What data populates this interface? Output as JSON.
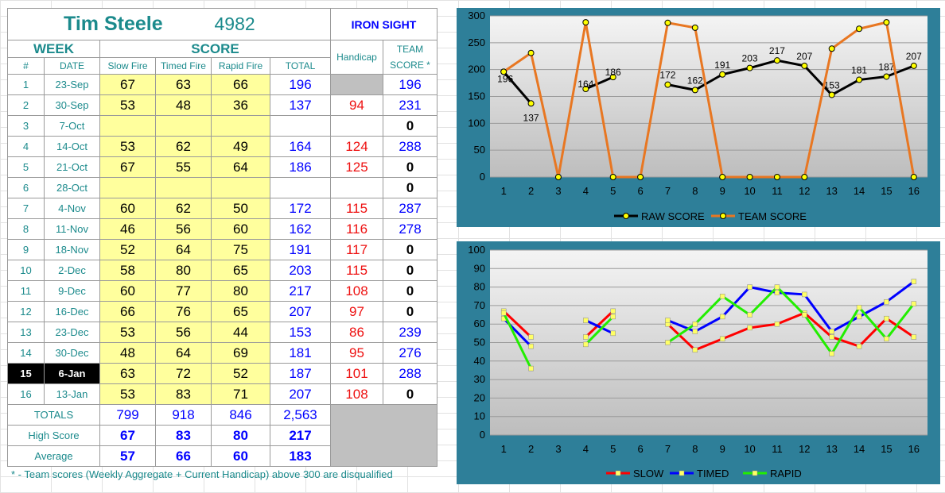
{
  "header": {
    "name": "Tim Steele",
    "id_number": "4982",
    "division": "IRON SIGHT"
  },
  "labels": {
    "week": "WEEK",
    "score": "SCORE",
    "handicap": "Handicap",
    "team_line1": "TEAM",
    "team_line2": "SCORE *",
    "num": "#",
    "date": "DATE",
    "slow": "Slow Fire",
    "timed": "Timed Fire",
    "rapid": "Rapid Fire",
    "total": "TOTAL",
    "totals": "TOTALS",
    "high": "High Score",
    "average": "Average"
  },
  "rows": [
    {
      "n": "1",
      "date": "23-Sep",
      "slow": "67",
      "timed": "63",
      "rapid": "66",
      "total": "196",
      "hc": "",
      "team": "196"
    },
    {
      "n": "2",
      "date": "30-Sep",
      "slow": "53",
      "timed": "48",
      "rapid": "36",
      "total": "137",
      "hc": "94",
      "team": "231"
    },
    {
      "n": "3",
      "date": "7-Oct",
      "slow": "",
      "timed": "",
      "rapid": "",
      "total": "",
      "hc": "",
      "team": "0"
    },
    {
      "n": "4",
      "date": "14-Oct",
      "slow": "53",
      "timed": "62",
      "rapid": "49",
      "total": "164",
      "hc": "124",
      "team": "288"
    },
    {
      "n": "5",
      "date": "21-Oct",
      "slow": "67",
      "timed": "55",
      "rapid": "64",
      "total": "186",
      "hc": "125",
      "team": "0"
    },
    {
      "n": "6",
      "date": "28-Oct",
      "slow": "",
      "timed": "",
      "rapid": "",
      "total": "",
      "hc": "",
      "team": "0"
    },
    {
      "n": "7",
      "date": "4-Nov",
      "slow": "60",
      "timed": "62",
      "rapid": "50",
      "total": "172",
      "hc": "115",
      "team": "287"
    },
    {
      "n": "8",
      "date": "11-Nov",
      "slow": "46",
      "timed": "56",
      "rapid": "60",
      "total": "162",
      "hc": "116",
      "team": "278"
    },
    {
      "n": "9",
      "date": "18-Nov",
      "slow": "52",
      "timed": "64",
      "rapid": "75",
      "total": "191",
      "hc": "117",
      "team": "0"
    },
    {
      "n": "10",
      "date": "2-Dec",
      "slow": "58",
      "timed": "80",
      "rapid": "65",
      "total": "203",
      "hc": "115",
      "team": "0"
    },
    {
      "n": "11",
      "date": "9-Dec",
      "slow": "60",
      "timed": "77",
      "rapid": "80",
      "total": "217",
      "hc": "108",
      "team": "0"
    },
    {
      "n": "12",
      "date": "16-Dec",
      "slow": "66",
      "timed": "76",
      "rapid": "65",
      "total": "207",
      "hc": "97",
      "team": "0"
    },
    {
      "n": "13",
      "date": "23-Dec",
      "slow": "53",
      "timed": "56",
      "rapid": "44",
      "total": "153",
      "hc": "86",
      "team": "239"
    },
    {
      "n": "14",
      "date": "30-Dec",
      "slow": "48",
      "timed": "64",
      "rapid": "69",
      "total": "181",
      "hc": "95",
      "team": "276"
    },
    {
      "n": "15",
      "date": "6-Jan",
      "slow": "63",
      "timed": "72",
      "rapid": "52",
      "total": "187",
      "hc": "101",
      "team": "288"
    },
    {
      "n": "16",
      "date": "13-Jan",
      "slow": "53",
      "timed": "83",
      "rapid": "71",
      "total": "207",
      "hc": "108",
      "team": "0"
    }
  ],
  "summary": {
    "totals": {
      "slow": "799",
      "timed": "918",
      "rapid": "846",
      "total": "2,563"
    },
    "high": {
      "slow": "67",
      "timed": "83",
      "rapid": "80",
      "total": "217"
    },
    "average": {
      "slow": "57",
      "timed": "66",
      "rapid": "60",
      "total": "183"
    }
  },
  "current_week_index": 14,
  "footnote": "* - Team scores (Weekly Aggregate + Current Handicap) above 300 are disqualified",
  "colors": {
    "teal": "#1b8a8c",
    "panel": "#2e7f99",
    "highlight": "#ffff9d",
    "raw": "#000000",
    "team": "#e87722",
    "slow": "#ff0000",
    "timed": "#0000ff",
    "rapid": "#22ee00"
  },
  "chart_data": [
    {
      "type": "line",
      "x": [
        1,
        2,
        3,
        4,
        5,
        6,
        7,
        8,
        9,
        10,
        11,
        12,
        13,
        14,
        15,
        16
      ],
      "ylim": [
        0,
        300
      ],
      "yticks": [
        0,
        50,
        100,
        150,
        200,
        250,
        300
      ],
      "legend": "bottom",
      "grid": true,
      "series": [
        {
          "name": "RAW SCORE",
          "values": [
            196,
            137,
            null,
            164,
            186,
            null,
            172,
            162,
            191,
            203,
            217,
            207,
            153,
            181,
            187,
            207
          ],
          "labels": [
            "196",
            "137",
            "",
            "164",
            "186",
            "",
            "172",
            "162",
            "191",
            "203",
            "217",
            "207",
            "153",
            "181",
            "187",
            "207"
          ]
        },
        {
          "name": "TEAM SCORE",
          "values": [
            196,
            231,
            0,
            288,
            0,
            0,
            287,
            278,
            0,
            0,
            0,
            0,
            239,
            276,
            288,
            0
          ]
        }
      ]
    },
    {
      "type": "line",
      "x": [
        1,
        2,
        3,
        4,
        5,
        6,
        7,
        8,
        9,
        10,
        11,
        12,
        13,
        14,
        15,
        16
      ],
      "ylim": [
        0,
        100
      ],
      "yticks": [
        0,
        10,
        20,
        30,
        40,
        50,
        60,
        70,
        80,
        90,
        100
      ],
      "legend": "bottom",
      "grid": true,
      "series": [
        {
          "name": "SLOW",
          "values": [
            67,
            53,
            null,
            53,
            67,
            null,
            60,
            46,
            52,
            58,
            60,
            66,
            53,
            48,
            63,
            53
          ]
        },
        {
          "name": "TIMED",
          "values": [
            63,
            48,
            null,
            62,
            55,
            null,
            62,
            56,
            64,
            80,
            77,
            76,
            56,
            64,
            72,
            83
          ]
        },
        {
          "name": "RAPID",
          "values": [
            66,
            36,
            null,
            49,
            64,
            null,
            50,
            60,
            75,
            65,
            80,
            65,
            44,
            69,
            52,
            71
          ]
        }
      ]
    }
  ]
}
